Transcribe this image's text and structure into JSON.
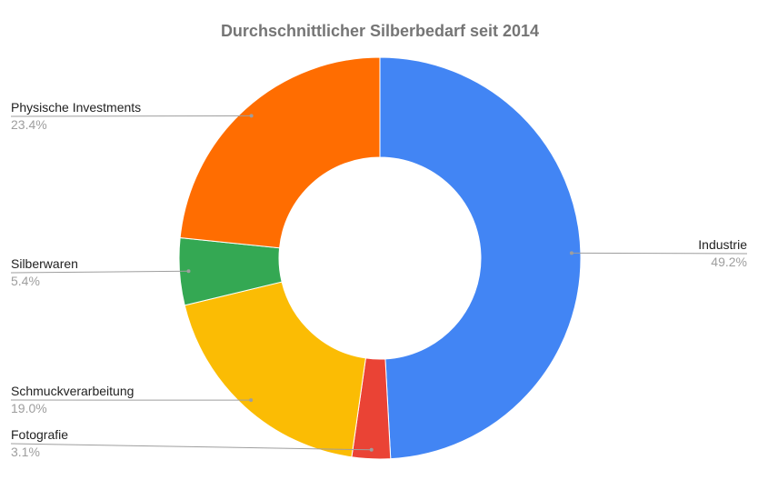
{
  "chart_data": {
    "type": "pie",
    "style": "donut",
    "title": "Durchschnittlicher Silberbedarf seit 2014",
    "slices": [
      {
        "label": "Industrie",
        "value": 49.2,
        "display": "49.2%",
        "color": "#4285f4"
      },
      {
        "label": "Fotografie",
        "value": 3.1,
        "display": "3.1%",
        "color": "#ea4335"
      },
      {
        "label": "Schmuckverarbeitung",
        "value": 19.0,
        "display": "19.0%",
        "color": "#fbbc04"
      },
      {
        "label": "Silberwaren",
        "value": 5.4,
        "display": "5.4%",
        "color": "#34a853"
      },
      {
        "label": "Physische Investments",
        "value": 23.4,
        "display": "23.4%",
        "color": "#ff6d01"
      }
    ],
    "legend": "none"
  }
}
